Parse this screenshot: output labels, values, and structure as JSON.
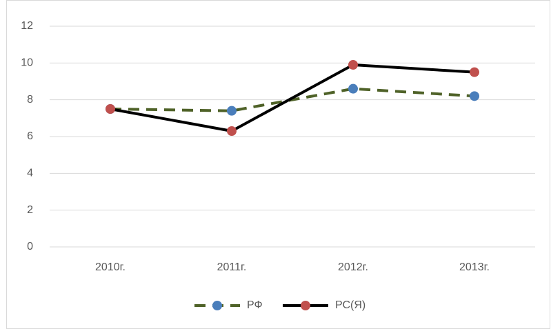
{
  "chart_data": {
    "type": "line",
    "categories": [
      "2010г.",
      "2011г.",
      "2012г.",
      "2013г."
    ],
    "series": [
      {
        "name": "РФ",
        "color": "#4f6228",
        "marker_color": "#4a7ebb",
        "dashed": true,
        "values": [
          7.5,
          7.4,
          8.6,
          8.2
        ]
      },
      {
        "name": "РС(Я)",
        "color": "#000000",
        "marker_color": "#c0504d",
        "dashed": false,
        "values": [
          7.5,
          6.3,
          9.9,
          9.5
        ]
      }
    ],
    "ylim": [
      0,
      12
    ],
    "yticks": [
      0,
      2,
      4,
      6,
      8,
      10,
      12
    ],
    "grid": true,
    "legend": "bottom"
  }
}
